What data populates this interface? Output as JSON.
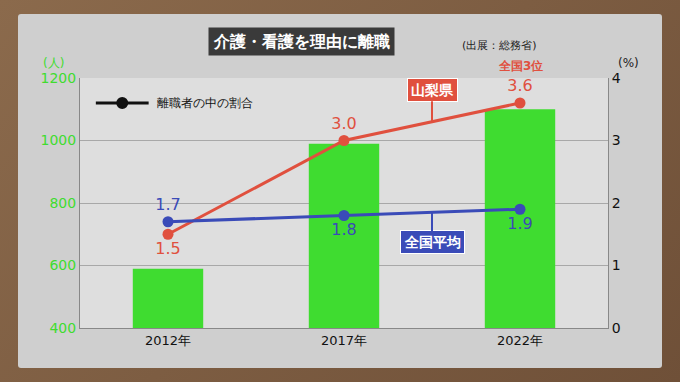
{
  "chart_data": {
    "type": "bar",
    "title": "介護・看護を理由に離職",
    "subtitle": "(出展：総務省)",
    "categories": [
      "2012年",
      "2017年",
      "2022年"
    ],
    "ylabel": "(人)",
    "y2label": "(%)",
    "legend_label": "離職者の中の割合",
    "legend": "upper left",
    "series": [
      {
        "type": "bar",
        "color": "#3fdc30",
        "values": [
          590,
          990,
          1100
        ],
        "data_labels": false
      },
      {
        "name": "山梨県",
        "type": "line",
        "axis": "y2",
        "color": "#e0503e",
        "marker": "circle",
        "values": [
          1.5,
          3.0,
          3.6
        ],
        "value_labels": [
          "1.5",
          "3.0",
          "3.6"
        ],
        "data_labels": true
      },
      {
        "name": "全国平均",
        "type": "line",
        "axis": "y2",
        "color": "#3a4bb8",
        "marker": "circle",
        "values": [
          1.7,
          1.8,
          1.9
        ],
        "data_labels": true
      }
    ],
    "annotations": [
      {
        "text": "全国3位",
        "series": "山梨県",
        "category": "2022年"
      }
    ],
    "ylim": [
      400,
      1200
    ],
    "yticks": [
      400,
      600,
      800,
      1000,
      1200
    ],
    "y2lim": [
      0,
      4
    ],
    "y2ticks": [
      0,
      1,
      2,
      3,
      4
    ],
    "grid": true
  }
}
